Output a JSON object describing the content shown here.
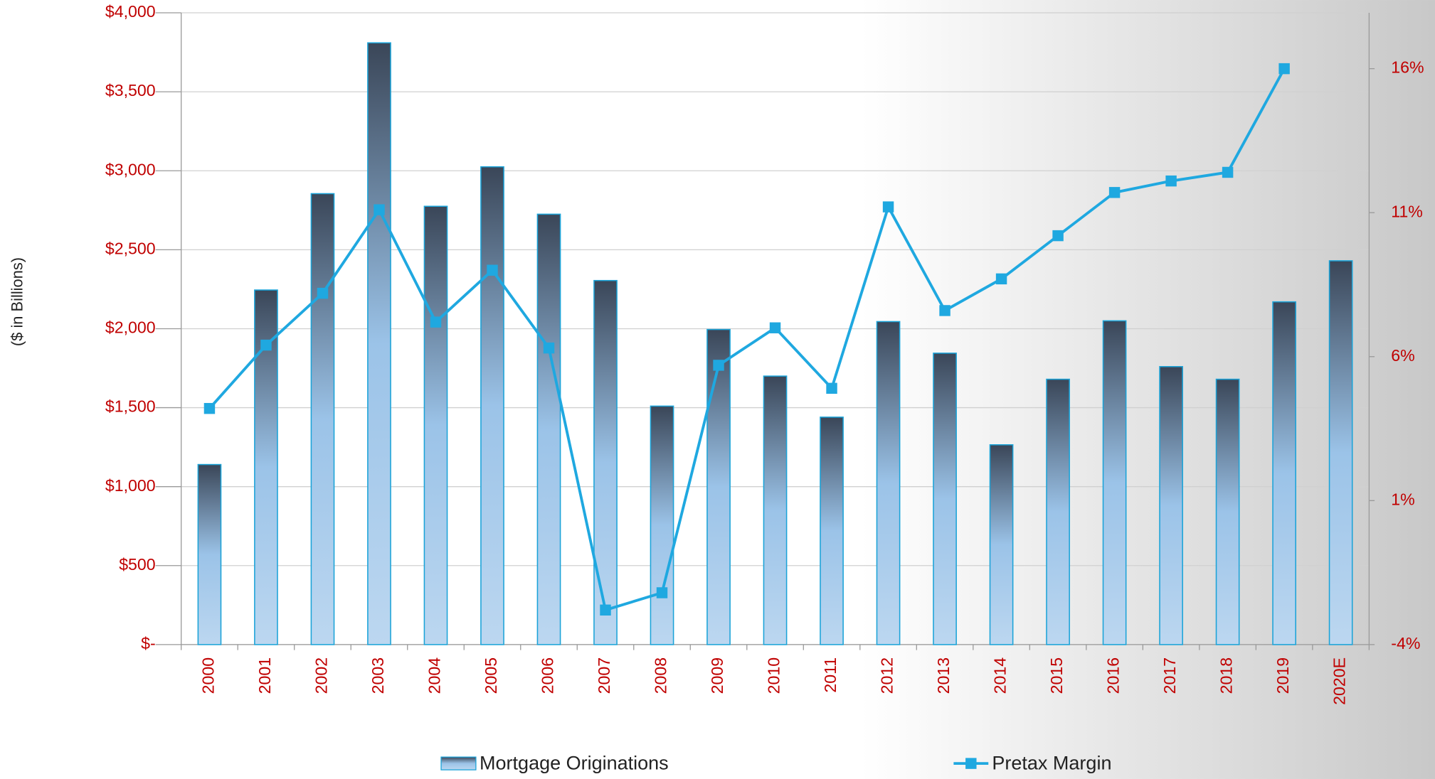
{
  "chart_data": {
    "type": "bar-line",
    "y_label": "($ in Billions)",
    "categories": [
      "2000",
      "2001",
      "2002",
      "2003",
      "2004",
      "2005",
      "2006",
      "2007",
      "2008",
      "2009",
      "2010",
      "2011",
      "2012",
      "2013",
      "2014",
      "2015",
      "2016",
      "2017",
      "2018",
      "2019",
      "2020E"
    ],
    "series": [
      {
        "name": "Mortgage Originations",
        "type": "bar",
        "color": "#1aa3d8",
        "axis": "y",
        "values": [
          1140,
          2245,
          2855,
          3810,
          2775,
          3025,
          2725,
          2305,
          1510,
          1995,
          1700,
          1440,
          2045,
          1845,
          1265,
          1680,
          2050,
          1760,
          1680,
          2170,
          2430
        ]
      },
      {
        "name": "Pretax Margin",
        "type": "line",
        "color": "#1fa8e0",
        "axis": "y2",
        "values": [
          4.2,
          6.4,
          8.2,
          11.1,
          7.2,
          9.0,
          6.3,
          -2.8,
          -2.2,
          5.7,
          7.0,
          4.9,
          11.2,
          7.6,
          8.7,
          10.2,
          11.7,
          12.1,
          12.4,
          16.0,
          null
        ]
      }
    ],
    "ylim": [
      0,
      4000
    ],
    "yticks": [
      {
        "value": 0,
        "label": "$-"
      },
      {
        "value": 500,
        "label": "$500"
      },
      {
        "value": 1000,
        "label": "$1,000"
      },
      {
        "value": 1500,
        "label": "$1,500"
      },
      {
        "value": 2000,
        "label": "$2,000"
      },
      {
        "value": 2500,
        "label": "$2,500"
      },
      {
        "value": 3000,
        "label": "$3,000"
      },
      {
        "value": 3500,
        "label": "$3,500"
      },
      {
        "value": 4000,
        "label": "$4,000"
      }
    ],
    "y2lim": [
      -4,
      17.94
    ],
    "y2ticks": [
      {
        "value": -4,
        "label": "-4%"
      },
      {
        "value": 1,
        "label": "1%"
      },
      {
        "value": 6,
        "label": "6%"
      },
      {
        "value": 11,
        "label": "11%"
      },
      {
        "value": 16,
        "label": "16%"
      }
    ],
    "grid": true,
    "legend": "bottom"
  }
}
